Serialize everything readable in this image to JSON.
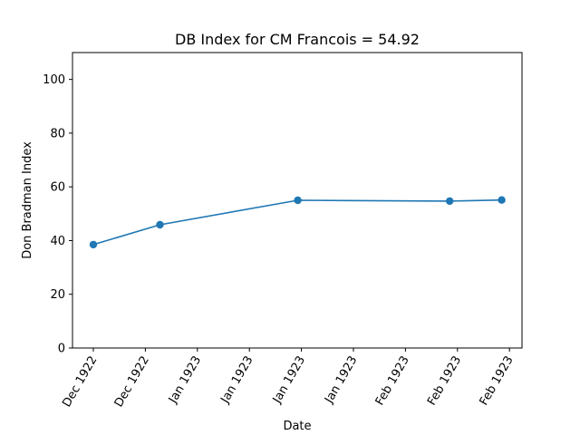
{
  "chart_data": {
    "type": "line",
    "title": "DB Index for CM Francois = 54.92",
    "xlabel": "Date",
    "ylabel": "Don Bradman Index",
    "ylim": [
      0,
      110
    ],
    "yticks": [
      0,
      20,
      40,
      60,
      80,
      100
    ],
    "xticks": [
      "Dec 1922",
      "Dec 1922",
      "Jan 1923",
      "Jan 1923",
      "Jan 1923",
      "Jan 1923",
      "Feb 1923",
      "Feb 1923",
      "Feb 1923"
    ],
    "series": [
      {
        "name": "DB Index",
        "color": "#1f77b4",
        "points": [
          {
            "x": 0.0,
            "y": 38.5
          },
          {
            "x": 1.28,
            "y": 45.9
          },
          {
            "x": 3.93,
            "y": 55.0
          },
          {
            "x": 6.85,
            "y": 54.7
          },
          {
            "x": 7.85,
            "y": 55.1
          }
        ]
      }
    ]
  }
}
